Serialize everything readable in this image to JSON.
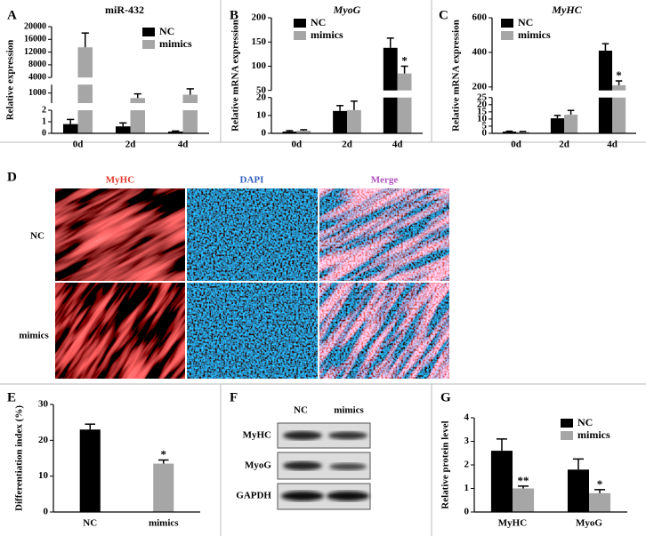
{
  "chart_data": [
    {
      "type": "bar",
      "panel": "A",
      "title": "miR-432",
      "ylabel": "Relative expression",
      "categories": [
        "0d",
        "2d",
        "4d"
      ],
      "series": [
        {
          "name": "NC",
          "color": "#000000",
          "values": [
            0.8,
            0.6,
            0.15
          ],
          "errors": [
            0.4,
            0.3,
            0.05
          ]
        },
        {
          "name": "mimics",
          "color": "#a6a6a6",
          "values": [
            13500,
            700,
            900
          ],
          "errors": [
            4500,
            250,
            350
          ]
        }
      ],
      "y_segments": [
        {
          "ylim": [
            0,
            2
          ],
          "yticks": [
            0,
            1,
            2
          ]
        },
        {
          "ylim": [
            400,
            1500
          ],
          "yticks": [
            1000
          ]
        },
        {
          "ylim": [
            4000,
            20000
          ],
          "yticks": [
            4000,
            8000,
            12000,
            16000,
            20000
          ]
        }
      ],
      "legend": "upper right"
    },
    {
      "type": "bar",
      "panel": "B",
      "title": "MyoG",
      "ylabel": "Relative mRNA expression",
      "categories": [
        "0d",
        "2d",
        "4d"
      ],
      "series": [
        {
          "name": "NC",
          "color": "#000000",
          "values": [
            1,
            12.5,
            138
          ],
          "errors": [
            0.5,
            3,
            20
          ],
          "annotations": [
            null,
            null,
            null
          ]
        },
        {
          "name": "mimics",
          "color": "#a6a6a6",
          "values": [
            1.5,
            13,
            85
          ],
          "errors": [
            0.5,
            5,
            15
          ],
          "annotations": [
            null,
            null,
            "*"
          ]
        }
      ],
      "y_segments": [
        {
          "ylim": [
            0,
            20
          ],
          "yticks": [
            0,
            10,
            20
          ]
        },
        {
          "ylim": [
            50,
            200
          ],
          "yticks": [
            50,
            100,
            150,
            200
          ]
        }
      ],
      "legend": "upper center"
    },
    {
      "type": "bar",
      "panel": "C",
      "title": "MyHC",
      "ylabel": "Relative mRNA expression",
      "categories": [
        "0d",
        "2d",
        "4d"
      ],
      "series": [
        {
          "name": "NC",
          "color": "#000000",
          "values": [
            1.2,
            10.5,
            410
          ],
          "errors": [
            0.3,
            2,
            40
          ],
          "annotations": [
            null,
            null,
            null
          ]
        },
        {
          "name": "mimics",
          "color": "#a6a6a6",
          "values": [
            1,
            13,
            210
          ],
          "errors": [
            0.3,
            3,
            25
          ],
          "annotations": [
            null,
            null,
            "*"
          ]
        }
      ],
      "y_segments": [
        {
          "ylim": [
            0,
            25
          ],
          "yticks": [
            0,
            5,
            10,
            15,
            20,
            25
          ]
        },
        {
          "ylim": [
            180,
            600
          ],
          "yticks": [
            200,
            400,
            600
          ]
        }
      ],
      "legend": "upper left"
    },
    {
      "type": "bar",
      "panel": "E",
      "ylabel": "Differentiation index (%)",
      "categories": [
        "NC",
        "mimics"
      ],
      "values": [
        23,
        13.5
      ],
      "errors": [
        1.5,
        1
      ],
      "colors": [
        "#000000",
        "#a6a6a6"
      ],
      "annotations": [
        null,
        "*"
      ],
      "ylim": [
        0,
        30
      ],
      "yticks": [
        0,
        10,
        20,
        30
      ]
    },
    {
      "type": "bar",
      "panel": "G",
      "ylabel": "Relative protein level",
      "categories": [
        "MyHC",
        "MyoG"
      ],
      "series": [
        {
          "name": "NC",
          "color": "#000000",
          "values": [
            2.6,
            1.8
          ],
          "errors": [
            0.5,
            0.45
          ],
          "annotations": [
            null,
            null
          ]
        },
        {
          "name": "mimics",
          "color": "#a6a6a6",
          "values": [
            1.0,
            0.8
          ],
          "errors": [
            0.1,
            0.15
          ],
          "annotations": [
            "**",
            "*"
          ]
        }
      ],
      "ylim": [
        0,
        4
      ],
      "yticks": [
        0,
        1,
        2,
        3,
        4
      ],
      "legend": "upper right"
    }
  ],
  "panel_D": {
    "panel": "D",
    "columns": [
      "MyHC",
      "DAPI",
      "Merge"
    ],
    "rows": [
      "NC",
      "mimics"
    ]
  },
  "panel_F": {
    "panel": "F",
    "columns": [
      "NC",
      "mimics"
    ],
    "rows": [
      "MyHC",
      "MyoG",
      "GAPDH"
    ]
  }
}
